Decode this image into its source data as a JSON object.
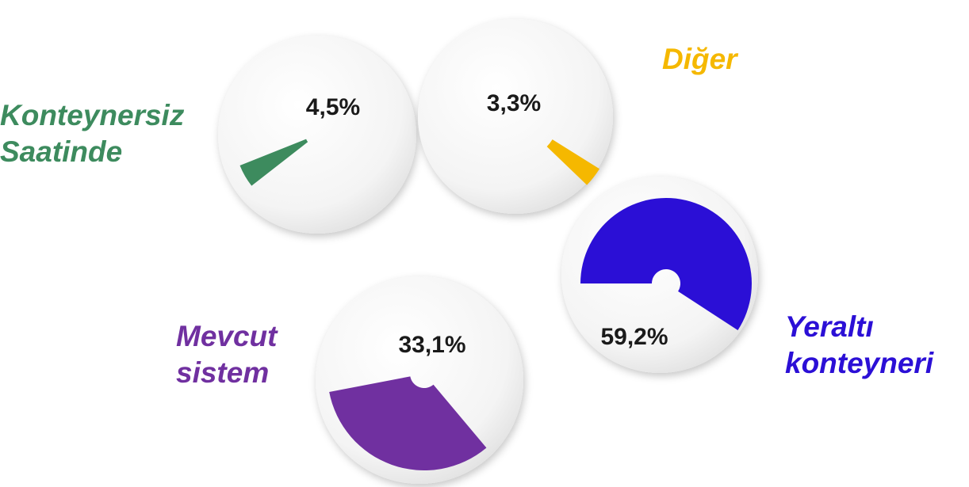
{
  "chart_data": {
    "type": "pie",
    "categories": [
      "Konteynersiz Saatinde",
      "Diğer",
      "Yeraltı konteyneri",
      "Mevcut sistem"
    ],
    "values": [
      4.5,
      3.3,
      59.2,
      33.1
    ],
    "value_labels": [
      "4,5%",
      "3,3%",
      "59,2%",
      "33,1%"
    ],
    "colors": [
      "#3d8b5e",
      "#f5b800",
      "#2b0fd6",
      "#7030a0"
    ]
  }
}
